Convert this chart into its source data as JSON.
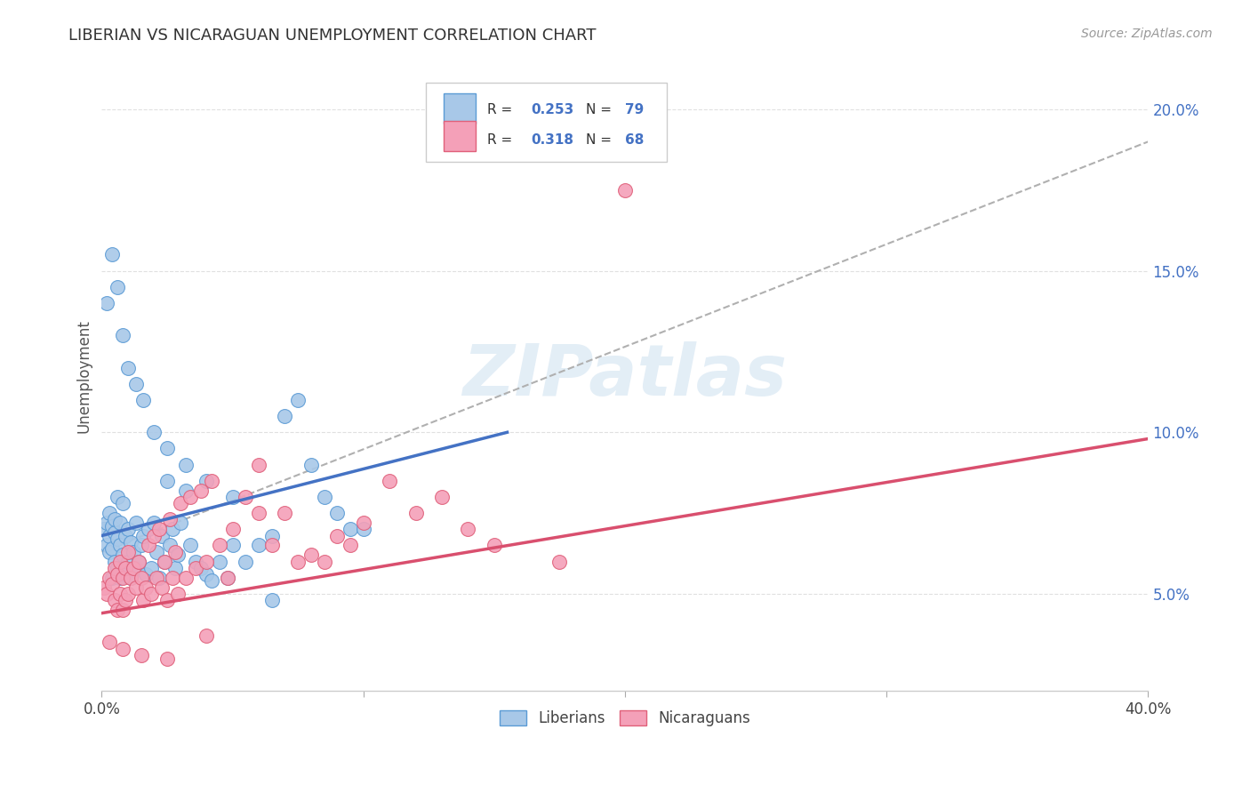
{
  "title": "LIBERIAN VS NICARAGUAN UNEMPLOYMENT CORRELATION CHART",
  "source": "Source: ZipAtlas.com",
  "ylabel": "Unemployment",
  "xlim": [
    0.0,
    0.4
  ],
  "ylim": [
    0.02,
    0.215
  ],
  "ytick_vals": [
    0.05,
    0.1,
    0.15,
    0.2
  ],
  "xtick_vals": [
    0.0,
    0.1,
    0.2,
    0.3,
    0.4
  ],
  "xtick_labels": [
    "0.0%",
    "",
    "",
    "",
    "40.0%"
  ],
  "liberian_color": "#a8c8e8",
  "nicaraguan_color": "#f4a0b8",
  "liberian_edge_color": "#5b9bd5",
  "nicaraguan_edge_color": "#e0607a",
  "liberian_line_color": "#4472c4",
  "nicaraguan_line_color": "#d94f6e",
  "trend_dash_color": "#b0b0b0",
  "R_liberian": 0.253,
  "N_liberian": 79,
  "R_nicaraguan": 0.318,
  "N_nicaraguan": 68,
  "liberian_trend_x": [
    0.0,
    0.155
  ],
  "liberian_trend_y": [
    0.068,
    0.1
  ],
  "nicaraguan_trend_x": [
    0.0,
    0.4
  ],
  "nicaraguan_trend_y": [
    0.044,
    0.098
  ],
  "dashed_trend_x": [
    0.0,
    0.4
  ],
  "dashed_trend_y": [
    0.063,
    0.19
  ],
  "watermark": "ZIPatlas",
  "background_color": "#ffffff",
  "grid_color": "#e0e0e0",
  "liberian_scatter_x": [
    0.001,
    0.002,
    0.002,
    0.003,
    0.003,
    0.003,
    0.004,
    0.004,
    0.004,
    0.005,
    0.005,
    0.005,
    0.006,
    0.006,
    0.006,
    0.007,
    0.007,
    0.007,
    0.008,
    0.008,
    0.008,
    0.009,
    0.009,
    0.01,
    0.01,
    0.011,
    0.011,
    0.012,
    0.013,
    0.013,
    0.014,
    0.015,
    0.016,
    0.017,
    0.018,
    0.019,
    0.02,
    0.021,
    0.022,
    0.023,
    0.024,
    0.025,
    0.026,
    0.027,
    0.028,
    0.029,
    0.03,
    0.032,
    0.034,
    0.036,
    0.038,
    0.04,
    0.042,
    0.045,
    0.048,
    0.05,
    0.055,
    0.06,
    0.065,
    0.07,
    0.075,
    0.08,
    0.085,
    0.09,
    0.095,
    0.1,
    0.002,
    0.004,
    0.006,
    0.008,
    0.01,
    0.013,
    0.016,
    0.02,
    0.025,
    0.032,
    0.04,
    0.05,
    0.065
  ],
  "liberian_scatter_y": [
    0.07,
    0.072,
    0.065,
    0.068,
    0.075,
    0.063,
    0.071,
    0.064,
    0.055,
    0.069,
    0.06,
    0.073,
    0.067,
    0.058,
    0.08,
    0.065,
    0.072,
    0.055,
    0.062,
    0.078,
    0.058,
    0.068,
    0.056,
    0.07,
    0.06,
    0.066,
    0.055,
    0.063,
    0.072,
    0.058,
    0.06,
    0.065,
    0.068,
    0.056,
    0.07,
    0.058,
    0.072,
    0.063,
    0.055,
    0.068,
    0.06,
    0.085,
    0.065,
    0.07,
    0.058,
    0.062,
    0.072,
    0.082,
    0.065,
    0.06,
    0.058,
    0.056,
    0.054,
    0.06,
    0.055,
    0.065,
    0.06,
    0.065,
    0.068,
    0.105,
    0.11,
    0.09,
    0.08,
    0.075,
    0.07,
    0.07,
    0.14,
    0.155,
    0.145,
    0.13,
    0.12,
    0.115,
    0.11,
    0.1,
    0.095,
    0.09,
    0.085,
    0.08,
    0.048
  ],
  "nicaraguan_scatter_x": [
    0.001,
    0.002,
    0.003,
    0.004,
    0.005,
    0.005,
    0.006,
    0.006,
    0.007,
    0.007,
    0.008,
    0.008,
    0.009,
    0.009,
    0.01,
    0.01,
    0.011,
    0.012,
    0.013,
    0.014,
    0.015,
    0.016,
    0.017,
    0.018,
    0.019,
    0.02,
    0.021,
    0.022,
    0.023,
    0.024,
    0.025,
    0.026,
    0.027,
    0.028,
    0.029,
    0.03,
    0.032,
    0.034,
    0.036,
    0.038,
    0.04,
    0.042,
    0.045,
    0.048,
    0.05,
    0.055,
    0.06,
    0.065,
    0.07,
    0.075,
    0.08,
    0.085,
    0.09,
    0.095,
    0.1,
    0.11,
    0.12,
    0.13,
    0.14,
    0.15,
    0.175,
    0.2,
    0.003,
    0.008,
    0.015,
    0.025,
    0.04,
    0.06
  ],
  "nicaraguan_scatter_y": [
    0.052,
    0.05,
    0.055,
    0.053,
    0.058,
    0.048,
    0.056,
    0.045,
    0.06,
    0.05,
    0.055,
    0.045,
    0.058,
    0.048,
    0.063,
    0.05,
    0.055,
    0.058,
    0.052,
    0.06,
    0.055,
    0.048,
    0.052,
    0.065,
    0.05,
    0.068,
    0.055,
    0.07,
    0.052,
    0.06,
    0.048,
    0.073,
    0.055,
    0.063,
    0.05,
    0.078,
    0.055,
    0.08,
    0.058,
    0.082,
    0.06,
    0.085,
    0.065,
    0.055,
    0.07,
    0.08,
    0.075,
    0.065,
    0.075,
    0.06,
    0.062,
    0.06,
    0.068,
    0.065,
    0.072,
    0.085,
    0.075,
    0.08,
    0.07,
    0.065,
    0.06,
    0.175,
    0.035,
    0.033,
    0.031,
    0.03,
    0.037,
    0.09
  ]
}
